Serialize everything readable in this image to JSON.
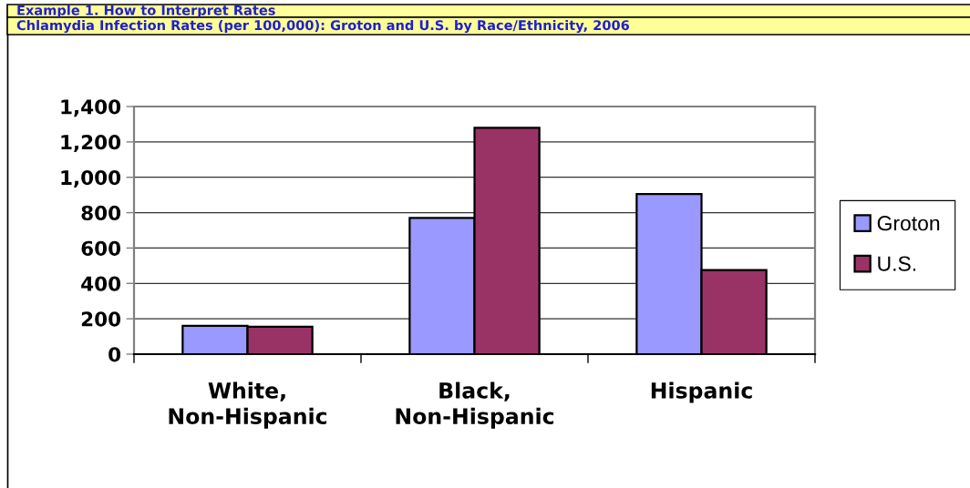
{
  "chart_data": {
    "type": "bar",
    "title": "Example 1. How to Interpret Rates",
    "subtitle": "Chlamydia Infection Rates (per 100,000): Groton and U.S. by Race/Ethnicity, 2006",
    "categories": [
      "White,\nNon-Hispanic",
      "Black,\nNon-Hispanic",
      "Hispanic"
    ],
    "series": [
      {
        "name": "Groton",
        "color": "#9999ff",
        "values": [
          160,
          770,
          905
        ]
      },
      {
        "name": "U.S.",
        "color": "#993366",
        "values": [
          155,
          1280,
          475
        ]
      }
    ],
    "ylim": [
      0,
      1400
    ],
    "yticks": [
      0,
      200,
      400,
      600,
      800,
      {
        "value": 1000,
        "label": "1,000"
      },
      {
        "value": 1200,
        "label": "1,200"
      },
      {
        "value": 1400,
        "label": "1,400"
      }
    ],
    "grid": "y",
    "legend": "right"
  }
}
